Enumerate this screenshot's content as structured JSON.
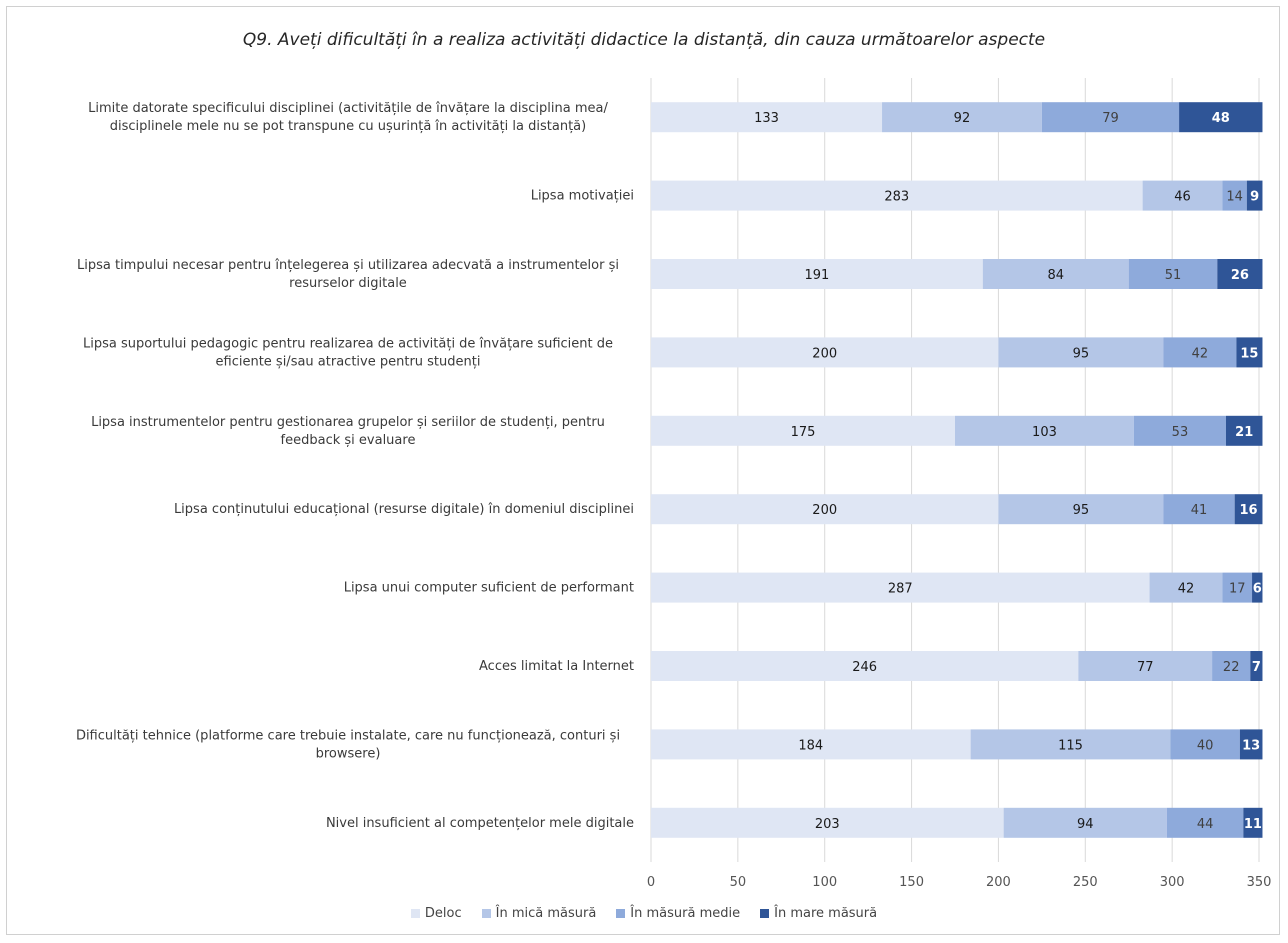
{
  "chart_data": {
    "type": "bar",
    "orientation": "horizontal",
    "stacked": true,
    "title": "Q9. Aveți dificultăți în a realiza activități didactice la distanță, din cauza următoarelor aspecte",
    "categories": [
      [
        "Limite datorate specificului disciplinei (activitățile de învățare la disciplina mea/",
        "disciplinele mele nu se pot transpune cu ușurință în activități la distanță)"
      ],
      [
        "Lipsa motivației"
      ],
      [
        "Lipsa timpului necesar pentru înțelegerea și utilizarea adecvată a instrumentelor și",
        "resurselor digitale"
      ],
      [
        "Lipsa suportului pedagogic pentru realizarea de activități de învățare suficient de",
        "eficiente și/sau atractive pentru studenți"
      ],
      [
        "Lipsa instrumentelor pentru gestionarea grupelor și seriilor de studenți, pentru",
        "feedback și evaluare"
      ],
      [
        "Lipsa conținutului educațional (resurse digitale) în domeniul disciplinei"
      ],
      [
        "Lipsa unui computer suficient de performant"
      ],
      [
        "Acces limitat la Internet"
      ],
      [
        "Dificultăți tehnice (platforme care trebuie instalate, care nu funcționează, conturi și",
        "browsere)"
      ],
      [
        "Nivel insuficient al competențelor mele digitale"
      ]
    ],
    "series": [
      {
        "name": "Deloc",
        "color": "#dfe6f4",
        "label_color": "#1a1a1a",
        "values": [
          133,
          283,
          191,
          200,
          175,
          200,
          287,
          246,
          184,
          203
        ]
      },
      {
        "name": "În mică măsură",
        "color": "#b4c6e7",
        "label_color": "#1a1a1a",
        "values": [
          92,
          46,
          84,
          95,
          103,
          95,
          42,
          77,
          115,
          94
        ]
      },
      {
        "name": "În măsură medie",
        "color": "#8eaadb",
        "label_color": "#404040",
        "values": [
          79,
          14,
          51,
          42,
          53,
          41,
          17,
          22,
          40,
          44
        ]
      },
      {
        "name": "În mare măsură",
        "color": "#2f5597",
        "label_color": "#ffffff",
        "values": [
          48,
          9,
          26,
          15,
          21,
          16,
          6,
          7,
          13,
          11
        ]
      }
    ],
    "xlim": [
      0,
      350
    ],
    "xticks": [
      "0",
      "50",
      "100",
      "150",
      "200",
      "250",
      "300",
      "350"
    ],
    "grid": true,
    "legend_position": "bottom",
    "grid_color": "#d9d9d9"
  }
}
